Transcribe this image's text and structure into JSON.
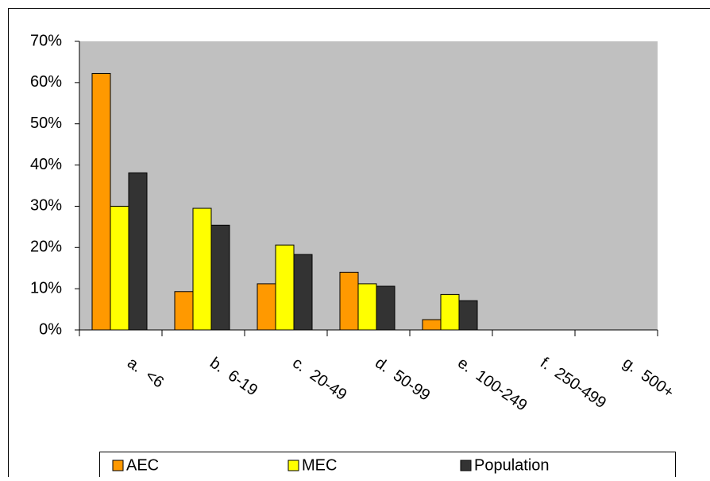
{
  "chart_data": {
    "type": "bar",
    "categories": [
      "a.  <6",
      "b.  6-19",
      "c.  20-49",
      "d.  50-99",
      "e.  100-249",
      "f.  250-499",
      "g.  500+"
    ],
    "series": [
      {
        "name": "AEC",
        "color": "#ff9900",
        "values": [
          62.2,
          9.3,
          11.2,
          14,
          2.5,
          0,
          0
        ]
      },
      {
        "name": "MEC",
        "color": "#ffff00",
        "values": [
          30,
          29.5,
          20.6,
          11.2,
          8.6,
          0,
          0
        ]
      },
      {
        "name": "Population",
        "color": "#333333",
        "values": [
          38.1,
          25.4,
          18.3,
          10.6,
          7.1,
          0,
          0
        ]
      }
    ],
    "ylim": [
      0,
      70
    ],
    "yticks": [
      {
        "value": 0,
        "label": "0%"
      },
      {
        "value": 10,
        "label": "10%"
      },
      {
        "value": 20,
        "label": "20%"
      },
      {
        "value": 30,
        "label": "30%"
      },
      {
        "value": 40,
        "label": "40%"
      },
      {
        "value": 50,
        "label": "50%"
      },
      {
        "value": 60,
        "label": "60%"
      },
      {
        "value": 70,
        "label": "70%"
      }
    ],
    "plot_background": "#c0c0c0"
  }
}
